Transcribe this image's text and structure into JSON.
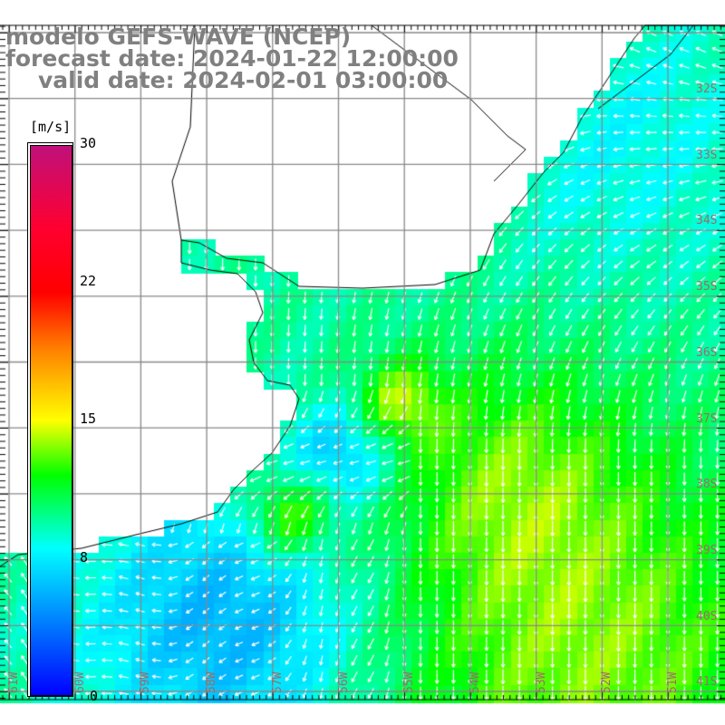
{
  "title": {
    "model": "modelo GEFS-WAVE (NCEP)",
    "forecast": "forecast date: 2024-01-22 12:00:00",
    "valid": "valid date: 2024-02-01 03:00:00"
  },
  "colorbar": {
    "unit": "[m/s]",
    "ticks": [
      "30",
      "22",
      "15",
      "8",
      "0"
    ],
    "colors": [
      "#0000ff",
      "#00ffff",
      "#00ff00",
      "#ffff00",
      "#ff0000",
      "#c0107a"
    ]
  },
  "grid": {
    "lat_labels": [
      "32S",
      "33S",
      "34S",
      "35S",
      "36S",
      "37S",
      "38S",
      "39S",
      "40S",
      "41S"
    ],
    "lon_labels": [
      "61W",
      "60W",
      "59W",
      "58W",
      "57W",
      "56W",
      "55W",
      "54W",
      "53W",
      "52W",
      "51W"
    ]
  }
}
